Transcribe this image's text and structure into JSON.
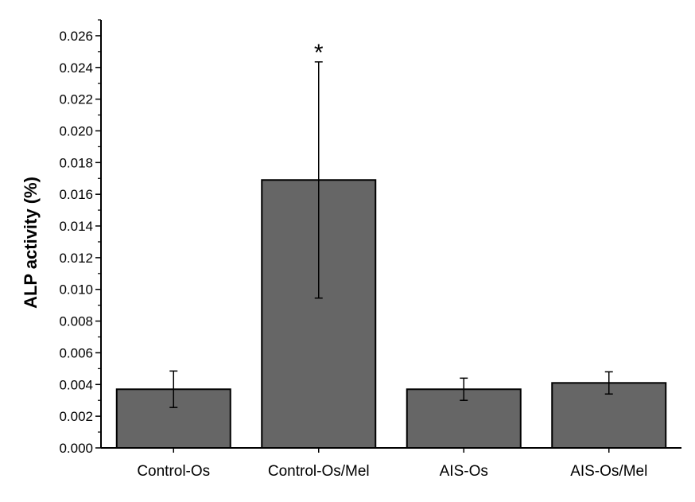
{
  "chart_data": {
    "type": "bar",
    "title": "",
    "xlabel": "",
    "ylabel": "ALP activity (%)",
    "ylim": [
      0,
      0.027
    ],
    "yticks": [
      "0.000",
      "0.002",
      "0.004",
      "0.006",
      "0.008",
      "0.010",
      "0.012",
      "0.014",
      "0.016",
      "0.018",
      "0.020",
      "0.022",
      "0.024",
      "0.026"
    ],
    "categories": [
      "Control-Os",
      "Control-Os/Mel",
      "AIS-Os",
      "AIS-Os/Mel"
    ],
    "values": [
      0.0037,
      0.0169,
      0.0037,
      0.0041
    ],
    "errors": [
      0.00115,
      0.00745,
      0.0007,
      0.0007
    ],
    "annotations": [
      "",
      "*",
      "",
      ""
    ],
    "grid": false,
    "colors": {
      "bar_fill": "#666666",
      "bar_stroke": "#000000",
      "axis": "#000000"
    }
  }
}
